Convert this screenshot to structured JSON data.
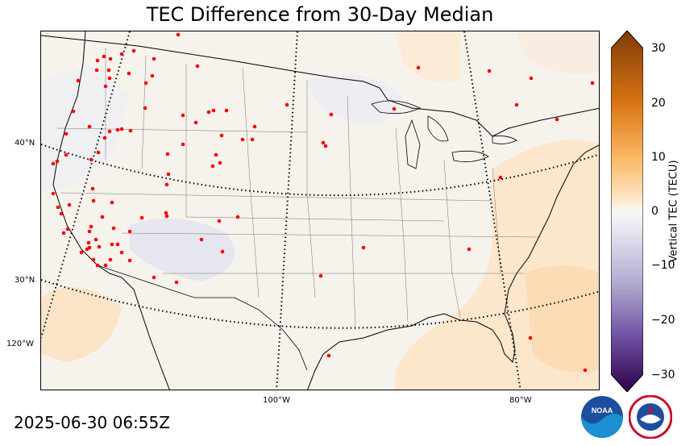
{
  "title": "TEC Difference from 30-Day Median",
  "timestamp": "2025-06-30 06:55Z",
  "lat_labels": [
    "40°N",
    "30°N",
    "120°W"
  ],
  "lon_labels": [
    "100°W",
    "80°W"
  ],
  "colorbar": {
    "label": "Vertical TEC (TECU)",
    "ticks": [
      "30",
      "20",
      "10",
      "0",
      "−10",
      "−20",
      "−30"
    ],
    "min": -30,
    "max": 30,
    "positive_color": "#7f3b08",
    "neutral_color": "#f7f7f7",
    "negative_color": "#2d004b"
  },
  "stations": {
    "color": "#ff0000"
  },
  "logos": {
    "noaa": "NOAA",
    "nws": "NATIONAL WEATHER SERVICE"
  }
}
